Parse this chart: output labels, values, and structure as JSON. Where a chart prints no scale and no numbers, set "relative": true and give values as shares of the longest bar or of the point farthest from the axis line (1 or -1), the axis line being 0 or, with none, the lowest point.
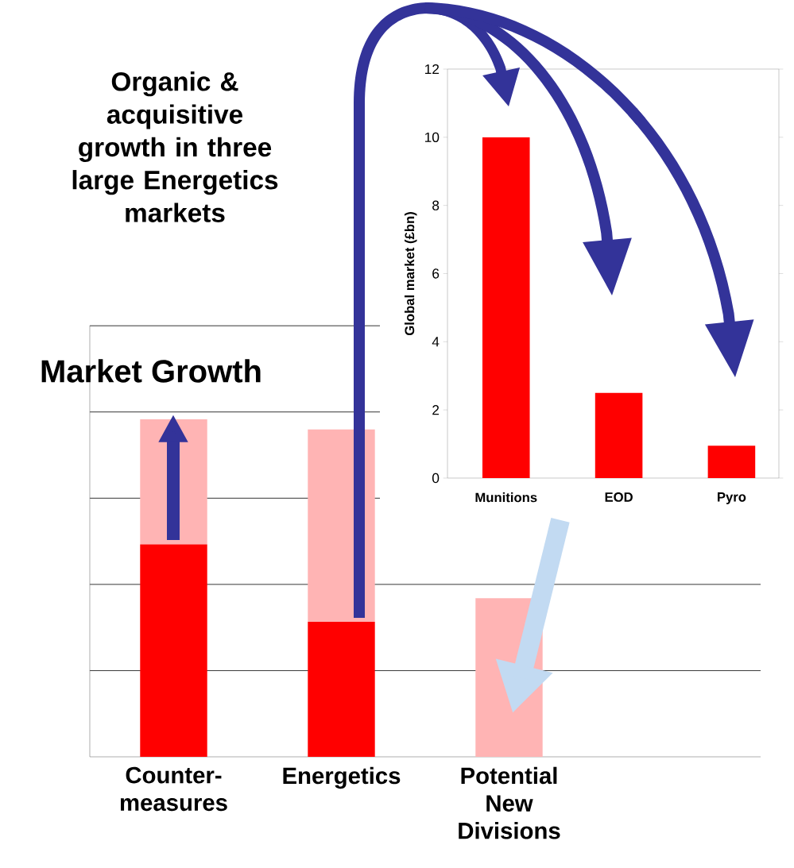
{
  "chart_data": [
    {
      "type": "bar",
      "title": "Organic & acquisitive growth in three large Energetics markets",
      "annotations": [
        "Market Growth"
      ],
      "categories": [
        "Counter-measures",
        "Energetics",
        "Potential New Divisions"
      ],
      "stacked": true,
      "relative": true,
      "grid": "y",
      "series": [
        {
          "color": "#ff0000",
          "values": [
            0.63,
            0.4,
            0
          ]
        },
        {
          "color": "#ffb4b4",
          "values": [
            0.37,
            0.57,
            0.47
          ]
        }
      ]
    },
    {
      "type": "bar",
      "ylabel": "Global market (£bn)",
      "categories": [
        "Munitions",
        "EOD",
        "Pyro"
      ],
      "values": [
        10,
        2.5,
        0.95
      ],
      "color": "#ff0000",
      "ylim": [
        0,
        12
      ],
      "yticks": [
        0,
        2,
        4,
        6,
        8,
        10,
        12
      ]
    }
  ]
}
